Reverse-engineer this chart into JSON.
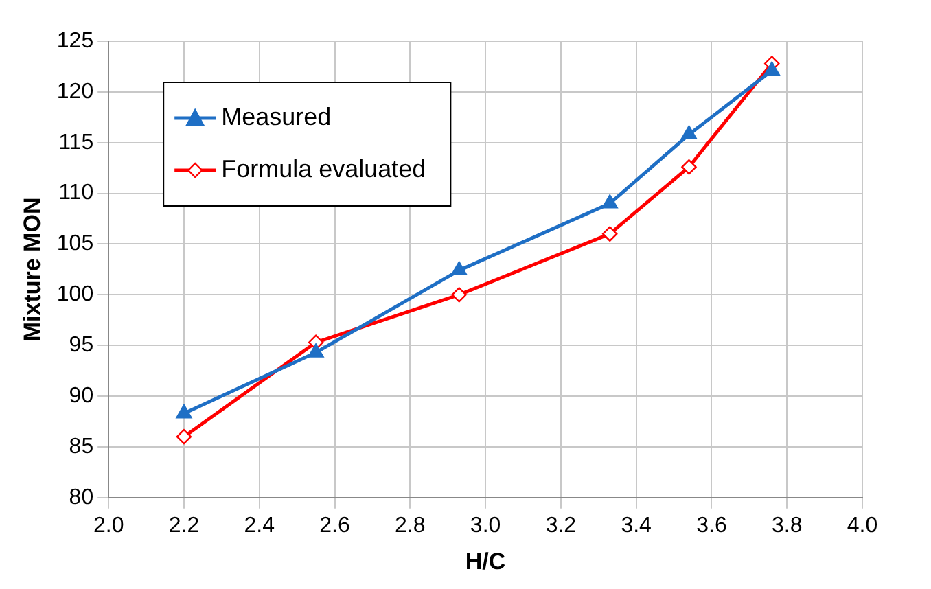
{
  "chart_data": {
    "type": "line",
    "xlabel": "H/C",
    "ylabel": "Mixture MON",
    "xlim": [
      2.0,
      4.0
    ],
    "xticks": [
      {
        "value": 2.0,
        "label": "2.0"
      },
      {
        "value": 2.2,
        "label": "2.2"
      },
      {
        "value": 2.4,
        "label": "2.4"
      },
      {
        "value": 2.6,
        "label": "2.6"
      },
      {
        "value": 2.8,
        "label": "2.8"
      },
      {
        "value": 3.0,
        "label": "3.0"
      },
      {
        "value": 3.2,
        "label": "3.2"
      },
      {
        "value": 3.4,
        "label": "3.4"
      },
      {
        "value": 3.6,
        "label": "3.6"
      },
      {
        "value": 3.8,
        "label": "3.8"
      },
      {
        "value": 4.0,
        "label": "4.0"
      }
    ],
    "ylim": [
      80,
      125
    ],
    "yticks": [
      80,
      85,
      90,
      95,
      100,
      105,
      110,
      115,
      120,
      125
    ],
    "grid": true,
    "legend": "top left",
    "line_style": "solid",
    "series": [
      {
        "name": "Measured",
        "color": "#1f6fc5",
        "marker": "triangle",
        "x": [
          2.2,
          2.55,
          2.93,
          3.33,
          3.54,
          3.76
        ],
        "values": [
          88.3,
          94.3,
          102.4,
          109,
          115.8,
          122.1
        ]
      },
      {
        "name": "Formula evaluated",
        "color": "#ff0000",
        "marker": "diamond",
        "x": [
          2.2,
          2.55,
          2.93,
          3.33,
          3.54,
          3.76
        ],
        "values": [
          86,
          95.3,
          100,
          106,
          112.6,
          122.8
        ]
      }
    ]
  }
}
